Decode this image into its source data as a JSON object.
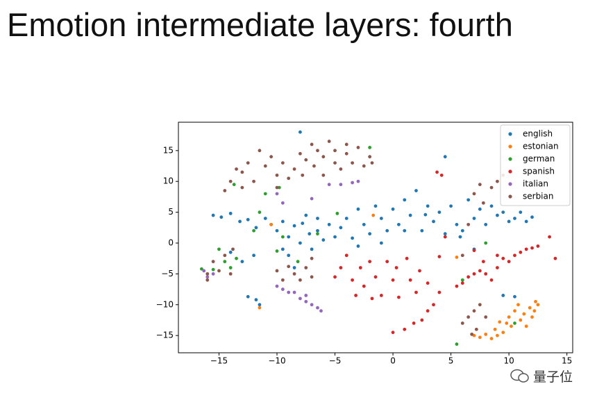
{
  "title": "Emotion intermediate layers: fourth",
  "watermark": "量子位",
  "chart_data": {
    "type": "scatter",
    "xlim": [
      -18.5,
      15.5
    ],
    "ylim": [
      -17.8,
      19.6
    ],
    "xticks": [
      {
        "value": -15,
        "label": "−15"
      },
      {
        "value": -10,
        "label": "−10"
      },
      {
        "value": -5,
        "label": "−5"
      },
      0,
      5,
      10,
      15
    ],
    "yticks": [
      {
        "value": -15,
        "label": "−15"
      },
      {
        "value": -10,
        "label": "−10"
      },
      {
        "value": -5,
        "label": "−5"
      },
      0,
      5,
      10,
      15
    ],
    "legend": "upper right",
    "series": [
      {
        "name": "english",
        "color": "#1f77b4",
        "x": [
          -15.5,
          -14.8,
          -14,
          -13.2,
          -12.5,
          -11.8,
          -11,
          -10.5,
          -10,
          -9.5,
          -9,
          -8.5,
          -8,
          -7.8,
          -7.2,
          -7,
          -6.5,
          -6,
          -5.5,
          -5,
          -4.5,
          -4,
          -3.5,
          -3,
          -2.5,
          -2,
          -1.5,
          -1,
          -0.5,
          0,
          0.5,
          1,
          1.5,
          2,
          2.5,
          3,
          3.5,
          4,
          4.5,
          5,
          5.5,
          6,
          6.5,
          7,
          7.5,
          8,
          8.5,
          9,
          9.5,
          10,
          10.5,
          11,
          11.5,
          12,
          4.5,
          -12.5,
          -11.8,
          -11.5,
          -13,
          -14,
          -12,
          -9,
          -8.5,
          -9.5,
          -3,
          -1,
          7,
          9.5,
          10.5,
          -8,
          -7.5,
          -6.5,
          1,
          2.8,
          5.8
        ],
        "values": [
          4.5,
          4.2,
          4.8,
          3.5,
          3.8,
          2.5,
          4,
          3,
          2,
          3.5,
          1,
          2.8,
          0,
          3.2,
          1.5,
          -1,
          2,
          0.5,
          3,
          1,
          2.5,
          4,
          0.8,
          5.5,
          3,
          1.5,
          6,
          4,
          2,
          5.5,
          3,
          7,
          4.5,
          8.5,
          2,
          6,
          3.5,
          5,
          1.5,
          6,
          3,
          2,
          7,
          4,
          5.5,
          3,
          6,
          4.5,
          5,
          3.5,
          4,
          5,
          3.5,
          4.2,
          14,
          -8.7,
          -9.2,
          -10,
          -3,
          -1.5,
          -2,
          -2,
          -4,
          -1,
          -0.5,
          0,
          -1,
          -8.5,
          -8.7,
          18,
          4.5,
          4,
          2,
          4.6,
          1
        ]
      },
      {
        "name": "estonian",
        "color": "#ff7f0e",
        "x": [
          7,
          7.5,
          8,
          8.5,
          9,
          9.5,
          9.8,
          10,
          10.5,
          10.8,
          11,
          11.3,
          11.5,
          11.8,
          12,
          12.2,
          12.5,
          10.2,
          9.2,
          8.8,
          12.3,
          -11.5,
          -1.7,
          -10.5,
          5.5
        ],
        "values": [
          -15,
          -15.3,
          -14.8,
          -15.5,
          -15,
          -14.5,
          -13,
          -12,
          -11,
          -10,
          -12.5,
          -11.5,
          -13.5,
          -10.5,
          -12,
          -11,
          -10,
          -13.5,
          -12.8,
          -14,
          -9.5,
          -10.5,
          4.5,
          3,
          -2.3
        ]
      },
      {
        "name": "german",
        "color": "#2ca02c",
        "x": [
          -16.5,
          -15.5,
          -15,
          -14.5,
          -14,
          -13.5,
          -13.7,
          -12,
          -11,
          -11.5,
          -10,
          -9.5,
          -8.2,
          -6.5,
          -4.8,
          -2,
          5.5,
          6,
          8,
          10.5,
          -9.8
        ],
        "values": [
          -4.2,
          -4.3,
          -1,
          -3,
          -4,
          -2.5,
          9.5,
          2,
          8,
          5,
          -1.3,
          1,
          -3,
          1.5,
          4.8,
          15.5,
          -16.4,
          -6,
          0,
          -13,
          9
        ]
      },
      {
        "name": "spanish",
        "color": "#d62728",
        "x": [
          -5,
          -4.5,
          -4,
          -3.5,
          -3.2,
          -2.8,
          -2.5,
          -2,
          -1.8,
          -1.5,
          -1,
          -0.5,
          0,
          0,
          0.3,
          0.5,
          1,
          1.2,
          1.5,
          1.8,
          2,
          2.3,
          2.5,
          3,
          3,
          3.5,
          4,
          4,
          4.5,
          3.8,
          4.2,
          5.5,
          6,
          6.5,
          7,
          7.5,
          7.8,
          8,
          8.5,
          9,
          9.5,
          10,
          10.5,
          11,
          11.5,
          12,
          12.5,
          13.5,
          14,
          7,
          9
        ],
        "values": [
          -5.5,
          -4,
          -2,
          -6,
          -8.5,
          -4,
          -7,
          -3,
          -9,
          -5.5,
          -8.5,
          -3,
          -6,
          -14.5,
          -4,
          -8.8,
          -14,
          -2.5,
          -6,
          -13,
          -8,
          -4.5,
          -12.5,
          -11,
          -6.5,
          -10,
          -2.2,
          -8,
          1,
          11.5,
          11,
          -7,
          -6.5,
          -5.5,
          -5,
          -4.5,
          -3,
          -5,
          -6,
          -4,
          -2.5,
          -3,
          -2,
          -1.5,
          -1,
          -0.8,
          -0.5,
          1,
          -2.5,
          -1.2,
          -2
        ]
      },
      {
        "name": "italian",
        "color": "#9467bd",
        "x": [
          -16.3,
          -16,
          -15.5,
          -10,
          -9.5,
          -9,
          -8.5,
          -8,
          -7.5,
          -7,
          -6.5,
          -6.2,
          -7.5,
          -5.5,
          -4.5,
          -3.5,
          -3,
          -9.5,
          -10,
          -7
        ],
        "values": [
          -4.5,
          -5.5,
          -5,
          -7,
          -7.5,
          -8,
          -8,
          -9,
          -9.5,
          -10,
          -10.5,
          -11,
          -8.5,
          9.5,
          9.5,
          9.8,
          10,
          6.5,
          8,
          7.2
        ]
      },
      {
        "name": "serbian",
        "color": "#8c564b",
        "x": [
          -14.5,
          -14,
          -13.5,
          -13,
          -13,
          -12.5,
          -12,
          -11.5,
          -11,
          -10.5,
          -10,
          -10,
          -9.5,
          -9,
          -8.5,
          -8,
          -7.8,
          -7.5,
          -7,
          -6.8,
          -6.5,
          -6,
          -6,
          -5.5,
          -5,
          -5,
          -4.5,
          -4,
          -4,
          -3.5,
          -3,
          -2.5,
          -2,
          -1.8,
          -16,
          -15.5,
          -15,
          -14.5,
          -14,
          -13.8,
          -10,
          -9.5,
          -9,
          -8.5,
          -8,
          -7.5,
          -7,
          -7,
          6.5,
          7,
          7.2,
          7.5,
          8,
          6.8,
          6,
          7,
          7.5,
          8.5,
          9,
          9.5,
          6.5,
          7.8,
          6,
          -16
        ],
        "values": [
          8.5,
          10,
          12,
          9,
          11.5,
          13,
          10,
          15,
          12.5,
          14,
          11,
          9,
          13,
          10.5,
          12,
          14.5,
          11,
          13.5,
          16,
          12.5,
          15,
          11,
          14,
          16.5,
          13,
          15,
          12,
          14.5,
          16,
          13,
          15.5,
          12.5,
          14,
          13,
          -6,
          -3,
          -4.5,
          -2,
          -5,
          -1,
          -4.5,
          -6,
          -3.8,
          -5,
          -6,
          -4,
          -5.5,
          -2.5,
          -12,
          -11,
          -14,
          -10,
          -12,
          -14.8,
          -13,
          8,
          9.5,
          9,
          10,
          11,
          3,
          6.5,
          -2,
          -5
        ]
      }
    ]
  }
}
